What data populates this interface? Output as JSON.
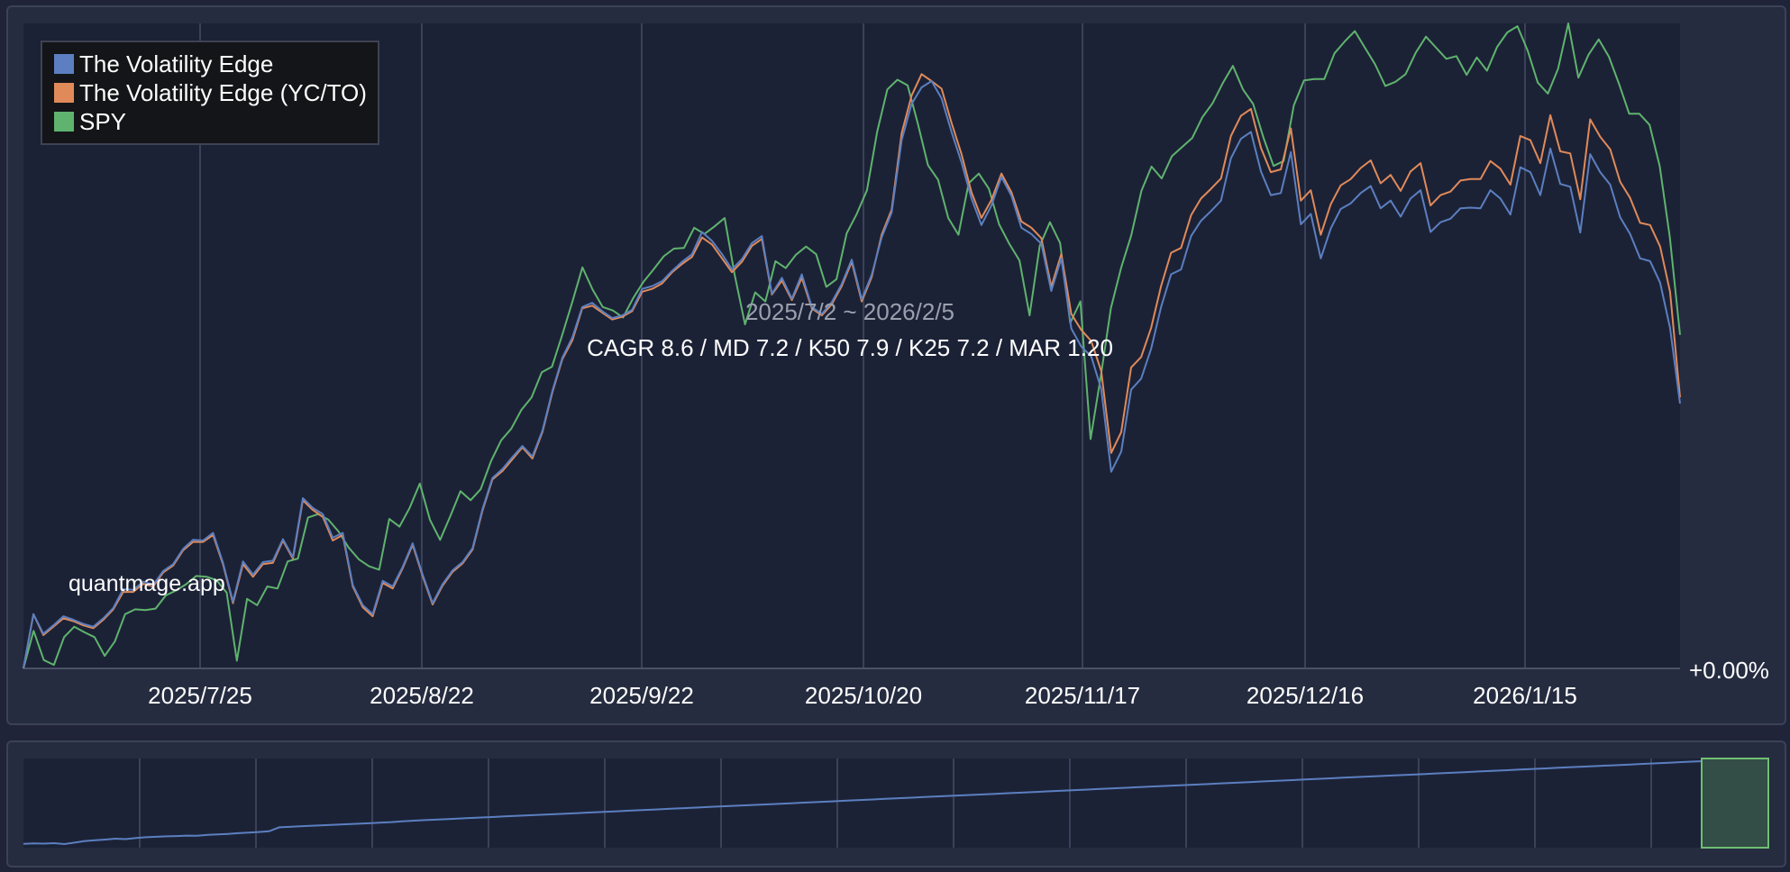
{
  "chart_data": {
    "type": "line",
    "x_tick_labels": [
      "2025/7/25",
      "2025/8/22",
      "2025/9/22",
      "2025/10/20",
      "2025/11/17",
      "2025/12/16",
      "2026/1/15"
    ],
    "x_range": [
      "2025/7/2",
      "2026/2/5"
    ],
    "y_axis_label_right": "+0.00%",
    "range_label": "2025/7/2 ~ 2026/2/5",
    "stats_label": "CAGR 8.6 / MD 7.2 / K50 7.9 / K25 7.2 / MAR 1.20",
    "watermark": "quantmage.app",
    "legend_position": "top-left",
    "grid": true,
    "series": [
      {
        "name": "The Volatility Edge",
        "color": "#5b7fc0",
        "values": [
          0.0,
          0.78,
          0.5,
          0.62,
          0.75,
          0.7,
          0.64,
          0.6,
          0.72,
          0.87,
          1.14,
          1.13,
          1.25,
          1.2,
          1.4,
          1.5,
          1.72,
          1.85,
          1.84,
          1.95,
          1.52,
          0.96,
          1.54,
          1.35,
          1.53,
          1.55,
          1.86,
          1.6,
          2.45,
          2.31,
          2.22,
          1.88,
          1.95,
          1.2,
          0.91,
          0.78,
          1.26,
          1.18,
          1.46,
          1.8,
          1.35,
          0.94,
          1.21,
          1.41,
          1.53,
          1.73,
          2.29,
          2.74,
          2.87,
          3.04,
          3.2,
          3.05,
          3.42,
          3.99,
          4.47,
          4.76,
          5.2,
          5.26,
          5.14,
          5.04,
          5.08,
          5.16,
          5.46,
          5.5,
          5.57,
          5.72,
          5.85,
          5.96,
          6.28,
          6.15,
          5.96,
          5.74,
          5.89,
          6.12,
          6.22,
          5.39,
          5.62,
          5.32,
          5.67,
          5.2,
          5.1,
          5.27,
          5.53,
          5.88,
          5.31,
          5.66,
          6.2,
          6.56,
          7.6,
          8.12,
          8.36,
          8.45,
          8.2,
          7.72,
          7.28,
          6.76,
          6.38,
          6.66,
          7.07,
          6.8,
          6.34,
          6.25,
          6.11,
          5.43,
          5.9,
          4.89,
          4.63,
          4.49,
          4.02,
          2.83,
          3.12,
          4.01,
          4.17,
          4.6,
          5.2,
          5.67,
          5.74,
          6.22,
          6.44,
          6.58,
          6.73,
          7.34,
          7.62,
          7.72,
          7.15,
          6.81,
          6.84,
          7.43,
          6.39,
          6.54,
          5.9,
          6.33,
          6.61,
          6.69,
          6.84,
          6.94,
          6.62,
          6.73,
          6.5,
          6.76,
          6.88,
          6.28,
          6.42,
          6.47,
          6.62,
          6.63,
          6.62,
          6.88,
          6.76,
          6.53,
          7.21,
          7.14,
          6.81,
          7.48,
          6.97,
          6.93,
          6.27,
          7.4,
          7.14,
          6.96,
          6.49,
          6.25,
          5.9,
          5.86,
          5.55,
          4.9,
          3.81
        ],
        "values_step_scale": 1.0
      },
      {
        "name": "The Volatility Edge (YC/TO)",
        "color": "#e08a5a",
        "values": [
          0.0,
          0.78,
          0.48,
          0.6,
          0.72,
          0.68,
          0.62,
          0.58,
          0.7,
          0.85,
          1.1,
          1.1,
          1.22,
          1.18,
          1.38,
          1.48,
          1.7,
          1.82,
          1.82,
          1.92,
          1.5,
          0.94,
          1.5,
          1.32,
          1.5,
          1.52,
          1.84,
          1.58,
          2.42,
          2.28,
          2.18,
          1.84,
          1.92,
          1.18,
          0.88,
          0.75,
          1.23,
          1.15,
          1.44,
          1.78,
          1.33,
          0.92,
          1.19,
          1.39,
          1.51,
          1.71,
          2.27,
          2.72,
          2.84,
          3.01,
          3.18,
          3.02,
          3.4,
          3.97,
          4.45,
          4.72,
          5.18,
          5.22,
          5.12,
          5.02,
          5.06,
          5.14,
          5.42,
          5.46,
          5.54,
          5.7,
          5.82,
          5.92,
          6.2,
          6.1,
          5.9,
          5.7,
          5.85,
          6.08,
          6.18,
          5.38,
          5.58,
          5.3,
          5.62,
          5.18,
          5.08,
          5.24,
          5.5,
          5.85,
          5.28,
          5.63,
          6.24,
          6.6,
          7.7,
          8.24,
          8.55,
          8.45,
          8.34,
          7.85,
          7.4,
          6.85,
          6.48,
          6.74,
          7.12,
          6.85,
          6.43,
          6.34,
          6.19,
          5.49,
          5.96,
          5.1,
          4.87,
          4.71,
          4.28,
          3.1,
          3.4,
          4.33,
          4.48,
          4.9,
          5.5,
          5.98,
          6.05,
          6.52,
          6.76,
          6.9,
          7.05,
          7.66,
          7.95,
          8.05,
          7.49,
          7.14,
          7.18,
          7.77,
          6.73,
          6.88,
          6.24,
          6.68,
          6.95,
          7.04,
          7.2,
          7.31,
          6.98,
          7.1,
          6.87,
          7.15,
          7.27,
          6.66,
          6.81,
          6.86,
          7.02,
          7.04,
          7.04,
          7.3,
          7.19,
          6.96,
          7.66,
          7.6,
          7.27,
          7.96,
          7.44,
          7.41,
          6.75,
          7.9,
          7.65,
          7.47,
          7.0,
          6.77,
          6.41,
          6.38,
          6.07,
          5.42,
          3.9
        ],
        "values_step_scale": 1.0
      },
      {
        "name": "SPY",
        "color": "#5fb36e",
        "values": [
          0.0,
          0.54,
          0.12,
          0.05,
          0.45,
          0.6,
          0.52,
          0.45,
          0.18,
          0.39,
          0.78,
          0.85,
          0.84,
          0.86,
          1.05,
          1.12,
          1.21,
          1.33,
          1.32,
          1.27,
          1.09,
          0.11,
          1.0,
          0.91,
          1.18,
          1.15,
          1.54,
          1.58,
          2.17,
          2.22,
          2.14,
          1.97,
          1.74,
          1.57,
          1.47,
          1.42,
          2.15,
          2.04,
          2.31,
          2.66,
          2.14,
          1.85,
          2.19,
          2.55,
          2.42,
          2.58,
          2.98,
          3.28,
          3.45,
          3.72,
          3.9,
          4.26,
          4.34,
          4.79,
          5.27,
          5.77,
          5.45,
          5.2,
          5.15,
          5.05,
          5.33,
          5.56,
          5.74,
          5.93,
          6.04,
          6.05,
          6.34,
          6.25,
          6.36,
          6.48,
          5.65,
          4.95,
          5.41,
          5.28,
          5.86,
          5.76,
          5.95,
          6.07,
          5.96,
          5.49,
          5.6,
          6.26,
          6.54,
          6.88,
          7.72,
          8.33,
          8.47,
          8.39,
          7.84,
          7.24,
          7.03,
          6.48,
          6.24,
          6.98,
          7.12,
          6.9,
          6.39,
          6.11,
          5.87,
          5.08,
          6.08,
          6.42,
          6.12,
          4.97,
          5.28,
          3.3,
          4.2,
          5.18,
          5.76,
          6.23,
          6.87,
          7.22,
          7.05,
          7.37,
          7.5,
          7.63,
          7.93,
          8.13,
          8.42,
          8.67,
          8.33,
          8.12,
          7.64,
          7.23,
          7.3,
          8.1,
          8.46,
          8.48,
          8.48,
          8.85,
          9.02,
          9.17,
          8.93,
          8.69,
          8.38,
          8.44,
          8.55,
          8.86,
          9.09,
          8.93,
          8.77,
          8.81,
          8.54,
          8.79,
          8.6,
          8.94,
          9.15,
          9.24,
          8.89,
          8.43,
          8.27,
          8.63,
          9.28,
          8.5,
          8.83,
          9.05,
          8.8,
          8.41,
          7.98,
          7.98,
          7.82,
          7.23,
          6.2,
          4.8
        ],
        "values_step_scale": 1.0
      }
    ]
  },
  "navigator": {
    "series_color": "#5b7fc0",
    "selection_color": "#6fbf73",
    "overview_values": [
      0.0,
      0.02,
      0.01,
      0.03,
      -0.01,
      0.05,
      0.12,
      0.15,
      0.18,
      0.22,
      0.2,
      0.25,
      0.28,
      0.3,
      0.32,
      0.33,
      0.35,
      0.34,
      0.38,
      0.4,
      0.42,
      0.45,
      0.48,
      0.5,
      0.53,
      0.7,
      0.72,
      0.74,
      0.76,
      0.78,
      0.8,
      0.82,
      0.84,
      0.86,
      0.88,
      0.9,
      0.92,
      0.95,
      0.98,
      1.0,
      1.02,
      1.04,
      1.06,
      1.08,
      1.1,
      1.12,
      1.14,
      1.16,
      1.18,
      1.2,
      1.22,
      1.24,
      1.26,
      1.28,
      1.3,
      1.32,
      1.34,
      1.36,
      1.38,
      1.4,
      1.42,
      1.44,
      1.46,
      1.48,
      1.5,
      1.52,
      1.54,
      1.56,
      1.58,
      1.6,
      1.62,
      1.64,
      1.66,
      1.68,
      1.7,
      1.72,
      1.74,
      1.76,
      1.78,
      1.8,
      1.82,
      1.84,
      1.86,
      1.88,
      1.9,
      1.92,
      1.94,
      1.96,
      1.98,
      2.0,
      2.02,
      2.04,
      2.06,
      2.08,
      2.1,
      2.12,
      2.14,
      2.16,
      2.18,
      2.2,
      2.22,
      2.24,
      2.26,
      2.28,
      2.3,
      2.32,
      2.34,
      2.36,
      2.38,
      2.4,
      2.42,
      2.44,
      2.46,
      2.48,
      2.5,
      2.52,
      2.54,
      2.56,
      2.58,
      2.6,
      2.62,
      2.64,
      2.66,
      2.68,
      2.7,
      2.72,
      2.74,
      2.76,
      2.78,
      2.8,
      2.82,
      2.84,
      2.86,
      2.88,
      2.9,
      2.92,
      2.94,
      2.96,
      2.98,
      3.0,
      3.02,
      3.04,
      3.06,
      3.08,
      3.1,
      3.12,
      3.14,
      3.16,
      3.18,
      3.2,
      3.22,
      3.24,
      3.26,
      3.28,
      3.3,
      3.32,
      3.34,
      3.36,
      3.38,
      3.4,
      3.42,
      3.44,
      3.46,
      3.48,
      3.5
    ]
  }
}
